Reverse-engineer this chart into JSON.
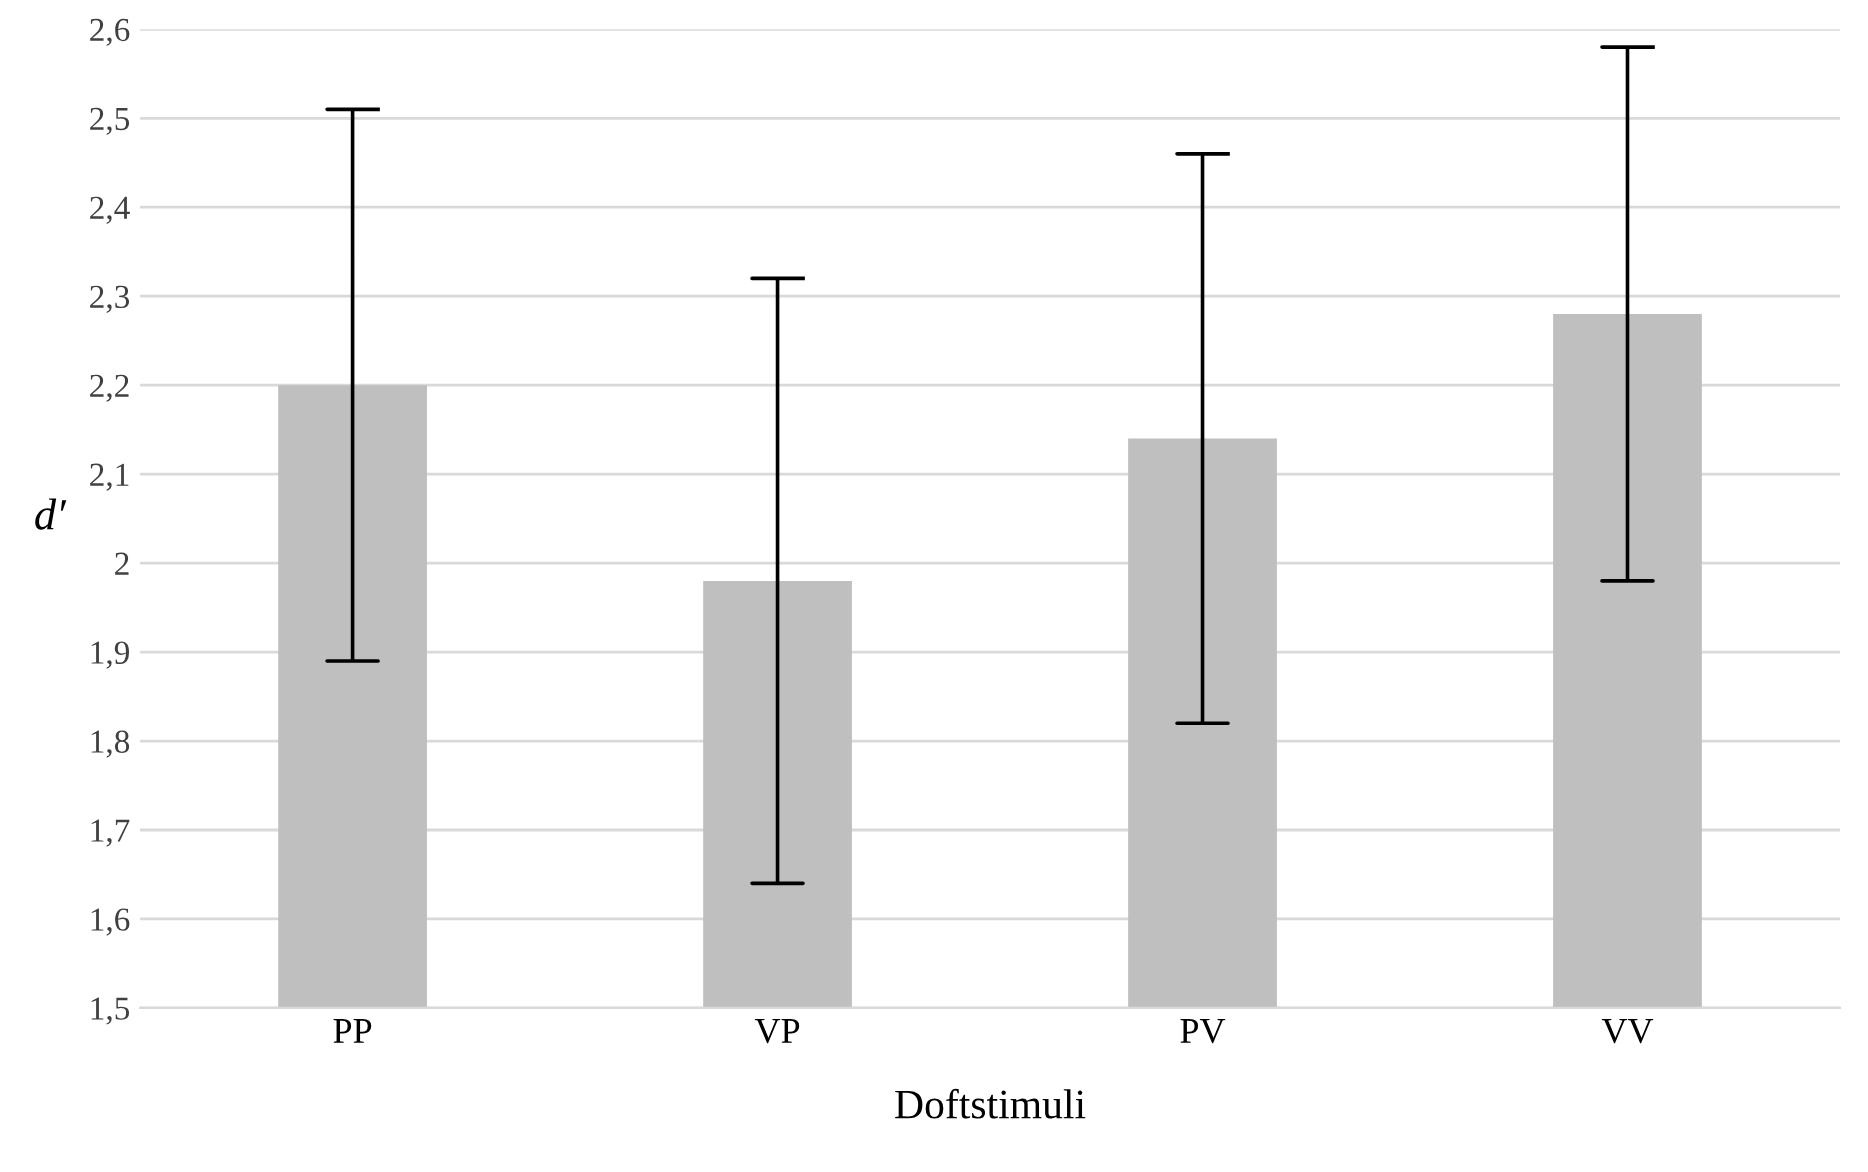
{
  "chart_data": {
    "type": "bar",
    "xlabel": "Doftstimuli",
    "ylabel": "d′",
    "categories": [
      "PP",
      "VP",
      "PV",
      "VV"
    ],
    "values": [
      2.2,
      1.98,
      2.14,
      2.28
    ],
    "errors": [
      0.31,
      0.34,
      0.32,
      0.3
    ],
    "color": "#bfbfbf",
    "ylim": [
      1.5,
      2.6
    ],
    "yticks": [
      {
        "value": 1.5,
        "label": "1,5"
      },
      {
        "value": 1.6,
        "label": "1,6"
      },
      {
        "value": 1.7,
        "label": "1,7"
      },
      {
        "value": 1.8,
        "label": "1,8"
      },
      {
        "value": 1.9,
        "label": "1,9"
      },
      2,
      {
        "value": 2.1,
        "label": "2,1"
      },
      {
        "value": 2.2,
        "label": "2,2"
      },
      {
        "value": 2.3,
        "label": "2,3"
      },
      {
        "value": 2.4,
        "label": "2,4"
      },
      {
        "value": 2.5,
        "label": "2,5"
      },
      {
        "value": 2.6,
        "label": "2,6"
      }
    ],
    "grid": "y",
    "legend": false
  }
}
